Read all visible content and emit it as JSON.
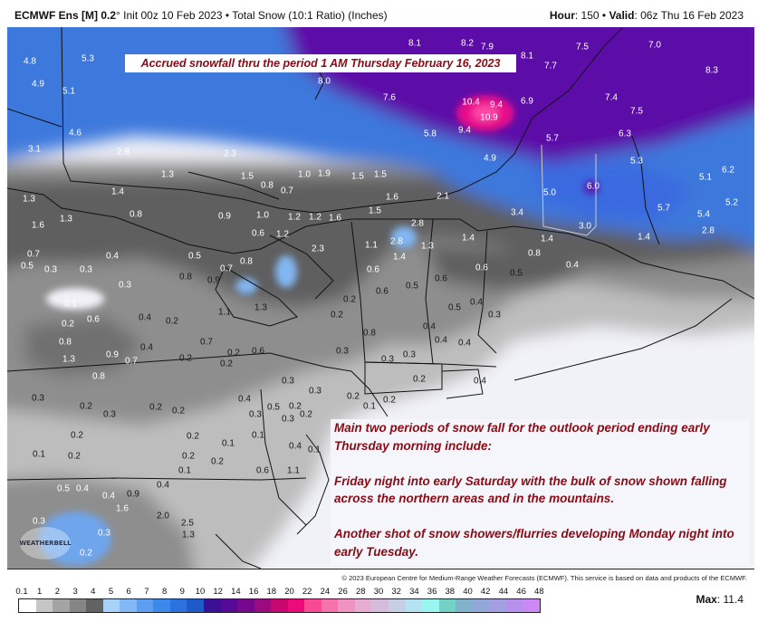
{
  "header": {
    "model": "ECMWF Ens [M] 0.2",
    "degree": "°",
    "init": " Init 00z 10 Feb 2023 • Total Snow (10:1 Ratio) (Inches)",
    "hour_label": "Hour",
    "hour_value": ": 150 • ",
    "valid_label": "Valid",
    "valid_value": ": 06z Thu 16 Feb 2023"
  },
  "annotations": {
    "top": "Accrued snowfall thru the period 1 AM Thursday February 16, 2023",
    "main": [
      "Main two periods of snow fall for the outlook period ending early Thursday morning include:",
      "Friday night into early Saturday with the bulk of snow shown falling across the northern areas and in the mountains.",
      "Another shot of snow showers/flurries developing Monday night into early Tuesday."
    ]
  },
  "logo": "WEATHERBELL",
  "copyright": "© 2023 European Centre for Medium-Range Weather Forecasts (ECMWF). This service is based on data and products of the ECMWF.",
  "legend": {
    "ticks": [
      "0.1",
      "1",
      "2",
      "3",
      "4",
      "5",
      "6",
      "7",
      "8",
      "9",
      "10",
      "12",
      "14",
      "16",
      "18",
      "20",
      "22",
      "24",
      "26",
      "28",
      "30",
      "32",
      "34",
      "36",
      "38",
      "40",
      "42",
      "44",
      "46",
      "48"
    ],
    "colors": [
      "#ffffff",
      "#c6c6c6",
      "#a4a4a4",
      "#858585",
      "#626262",
      "#a8d2fa",
      "#82b8f5",
      "#5c9ff0",
      "#3c89ec",
      "#2a72df",
      "#1f5bc8",
      "#3a1094",
      "#560a98",
      "#760890",
      "#9c0a80",
      "#c8086e",
      "#ee0a78",
      "#f84a92",
      "#f672aa",
      "#f092c2",
      "#e6acd2",
      "#d6bcdc",
      "#c6cfe6",
      "#b4e2f2",
      "#98f6ee",
      "#72d2c6",
      "#80b2cc",
      "#92a8d8",
      "#a49ee2",
      "#b690ea",
      "#cc88f4"
    ],
    "max_label": "Max",
    "max_value": ": 11.4"
  },
  "map": {
    "colors": {
      "heavy": "#5b10a8",
      "peak": "#f0107a",
      "moderate": "#3d78dc",
      "light_blue": "#82b6f2",
      "dark_gray": "#5e5e5e",
      "gray": "#8e8e8e",
      "light_gray": "#bdbdbd",
      "trace": "#f1f2f8"
    },
    "snow_values": [
      "4.8",
      "5.3",
      "4.9",
      "5.1",
      "4.6",
      "8.1",
      "8.2",
      "7.9",
      "8.1",
      "7.5",
      "7.0",
      "7.7",
      "8.3",
      "8.0",
      "7.6",
      "10.4",
      "9.4",
      "6.9",
      "7.4",
      "7.5",
      "10.9",
      "9.4",
      "5.8",
      "6.3",
      "5.7",
      "4.9",
      "5.3",
      "5.1",
      "6.2",
      "3.1",
      "2.9",
      "2.3",
      "1.3",
      "1.5",
      "0.8",
      "0.7",
      "1.0",
      "1.9",
      "1.5",
      "1.5",
      "1.4",
      "1.3",
      "2.1",
      "1.6",
      "5.0",
      "6.0",
      "5.7",
      "5.4",
      "5.2",
      "3.4",
      "3.0",
      "1.6",
      "1.3",
      "0.8",
      "0.9",
      "1.0",
      "1.2",
      "1.2",
      "1.6",
      "1.5",
      "2.8",
      "1.4",
      "1.4",
      "1.4",
      "2.8",
      "1.2",
      "2.3",
      "2.8",
      "1.3",
      "1.1",
      "1.4",
      "0.8",
      "0.4",
      "0.4",
      "0.3",
      "0.7",
      "0.5",
      "0.3",
      "0.3",
      "0.5",
      "0.7",
      "0.8",
      "0.6",
      "0.8",
      "0.9",
      "1.3",
      "1.1",
      "0.6",
      "0.6",
      "0.5",
      "0.6",
      "0.6",
      "0.5",
      "0.2",
      "0.2",
      "0.5",
      "0.4",
      "0.3",
      "0.1",
      "0.6",
      "0.2",
      "0.4",
      "0.2",
      "0.8",
      "0.9",
      "0.7",
      "0.4",
      "0.7",
      "0.2",
      "0.6",
      "1.3",
      "0.8",
      "0.3",
      "0.8",
      "0.4",
      "0.4",
      "0.4",
      "0.3",
      "0.3",
      "0.2",
      "0.4",
      "0.2",
      "0.2",
      "0.3",
      "0.3",
      "0.4",
      "0.5",
      "0.3",
      "0.2",
      "0.3",
      "0.2",
      "0.2",
      "0.3",
      "0.2",
      "0.3",
      "0.2",
      "0.2",
      "0.1",
      "0.2",
      "0.2",
      "0.1",
      "0.1",
      "0.4",
      "0.1",
      "0.2",
      "0.1",
      "0.2",
      "0.2",
      "0.1",
      "0.2",
      "0.6",
      "1.1",
      "0.5",
      "0.4",
      "0.4",
      "0.9",
      "0.4",
      "1.6",
      "2.0",
      "0.3",
      "0.3",
      "2.5",
      "1.3",
      "0.2"
    ]
  }
}
